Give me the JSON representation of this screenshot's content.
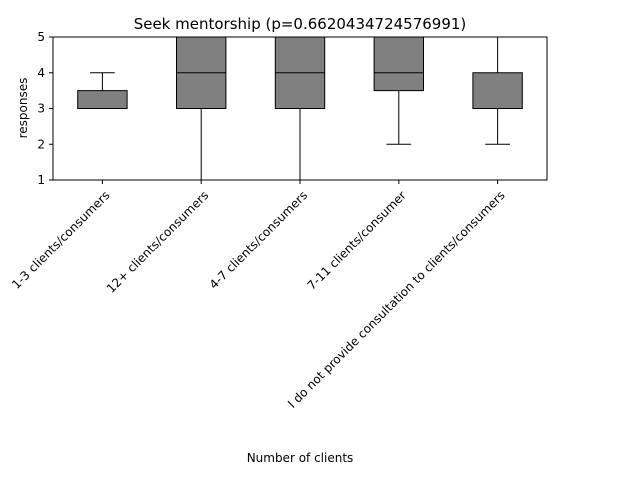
{
  "chart_data": {
    "type": "box",
    "title": "Seek mentorship (p=0.6620434724576991)",
    "xlabel": "Number of clients",
    "ylabel": "responses",
    "ylim": [
      1,
      5
    ],
    "yticks": [
      "1",
      "2",
      "3",
      "4",
      "5"
    ],
    "grid": false,
    "categories": [
      "1-3 clients/consumers",
      "12+ clients/consumers",
      "4-7 clients/consumers",
      "7-11 clients/consumer",
      "I do not provide consultation to clients/consumers"
    ],
    "boxes": [
      {
        "whisker_low": 3,
        "q1": 3,
        "median": 3,
        "q3": 3.5,
        "whisker_high": 4
      },
      {
        "whisker_low": 1,
        "q1": 3,
        "median": 4,
        "q3": 5,
        "whisker_high": 5
      },
      {
        "whisker_low": 1,
        "q1": 3,
        "median": 4,
        "q3": 5,
        "whisker_high": 5
      },
      {
        "whisker_low": 2,
        "q1": 3.5,
        "median": 4,
        "q3": 5,
        "whisker_high": 5
      },
      {
        "whisker_low": 2,
        "q1": 3,
        "median": 3,
        "q3": 4,
        "whisker_high": 5
      }
    ],
    "colors": {
      "box_fill": "#808080",
      "stroke": "#000000"
    }
  }
}
